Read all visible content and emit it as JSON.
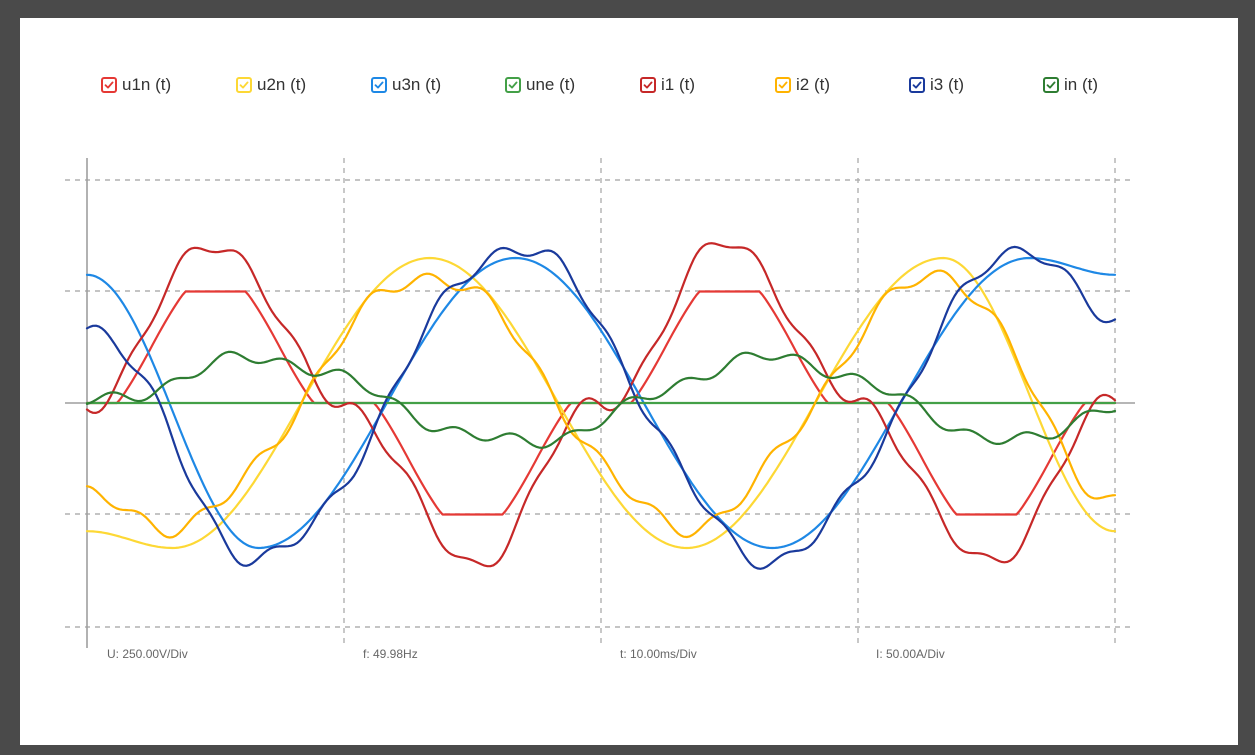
{
  "chart_data": {
    "type": "line",
    "title": "",
    "series": [
      {
        "name": "u1n (t)",
        "color": "#e53935",
        "values": [
          0,
          1.0,
          0,
          -1.0,
          0,
          1.0,
          0,
          -1.0,
          0
        ]
      },
      {
        "name": "u2n (t)",
        "color": "#fdd835",
        "values": [
          -1.15,
          -1.3,
          1.3,
          -1.3,
          1.3,
          -1.15
        ]
      },
      {
        "name": "u3n (t)",
        "color": "#1e88e5",
        "values": [
          1.15,
          -1.3,
          1.3,
          -1.3,
          1.3,
          1.15
        ]
      },
      {
        "name": "une (t)",
        "color": "#43a047",
        "values": [
          0,
          0
        ]
      },
      {
        "name": "i1 (t)",
        "color": "#c62828",
        "values": [
          0,
          1.45,
          0,
          -1.45,
          0,
          1.45,
          0,
          -1.45,
          0
        ]
      },
      {
        "name": "i2 (t)",
        "color": "#ffb300",
        "values": [
          -0.85,
          -1.1,
          1.15,
          -1.1,
          1.15,
          -0.85
        ]
      },
      {
        "name": "i3 (t)",
        "color": "#1a3a9c",
        "values": [
          0.7,
          -1.4,
          1.4,
          -1.4,
          1.4,
          0.7
        ]
      },
      {
        "name": "in (t)",
        "color": "#2e7d32",
        "values": [
          0,
          0.4,
          -0.35,
          0.4,
          -0.35,
          0
        ]
      }
    ],
    "x_divisions": 4,
    "y_divisions": 4,
    "grid": true,
    "legend_placement": "top",
    "footer": {
      "u_scale": "U: 250.00V/Div",
      "frequency": "f: 49.98Hz",
      "t_scale": "t: 10.00ms/Div",
      "i_scale": "I: 50.00A/Div"
    }
  }
}
